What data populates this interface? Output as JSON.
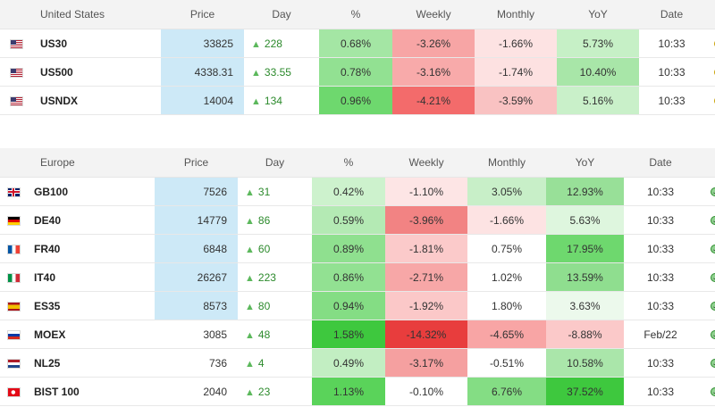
{
  "columns": {
    "price": "Price",
    "day": "Day",
    "pct": "%",
    "weekly": "Weekly",
    "monthly": "Monthly",
    "yoy": "YoY",
    "date": "Date"
  },
  "colors": {
    "price_highlight": "#cde9f7",
    "up_arrow": "#5cb85c",
    "status_open": "#8fd18f",
    "status_pending": "#ffe680"
  },
  "us": {
    "region": "United States",
    "rows": [
      {
        "symbol": "US30",
        "flag": "us-flag-icon",
        "price": "33825",
        "day": "228",
        "pct": "0.68%",
        "weekly": "-3.26%",
        "monthly": "-1.66%",
        "yoy": "5.73%",
        "date": "10:33",
        "status": "clock-icon",
        "bg": {
          "price": "#cde9f7",
          "pct": "#a4e6a4",
          "weekly": "#f7a5a5",
          "monthly": "#fde3e3",
          "yoy": "#c6f0c6"
        }
      },
      {
        "symbol": "US500",
        "flag": "us-flag-icon",
        "price": "4338.31",
        "day": "33.55",
        "pct": "0.78%",
        "weekly": "-3.16%",
        "monthly": "-1.74%",
        "yoy": "10.40%",
        "date": "10:33",
        "status": "clock-icon",
        "bg": {
          "price": "#cde9f7",
          "pct": "#92e192",
          "weekly": "#f8aaaa",
          "monthly": "#fde1e1",
          "yoy": "#a8e6a8"
        }
      },
      {
        "symbol": "USNDX",
        "flag": "us-flag-icon",
        "price": "14004",
        "day": "134",
        "pct": "0.96%",
        "weekly": "-4.21%",
        "monthly": "-3.59%",
        "yoy": "5.16%",
        "date": "10:33",
        "status": "clock-icon",
        "bg": {
          "price": "#cde9f7",
          "pct": "#6ed86e",
          "weekly": "#f36b6b",
          "monthly": "#f9c2c2",
          "yoy": "#c9f0c9"
        }
      }
    ]
  },
  "eu": {
    "region": "Europe",
    "rows": [
      {
        "symbol": "GB100",
        "flag": "uk-flag-icon",
        "price": "7526",
        "day": "31",
        "pct": "0.42%",
        "weekly": "-1.10%",
        "monthly": "3.05%",
        "yoy": "12.93%",
        "date": "10:33",
        "status": "smile-icon",
        "bg": {
          "price": "#cde9f7",
          "pct": "#cdf2cd",
          "weekly": "#fde5e5",
          "monthly": "#c8efc8",
          "yoy": "#98e098"
        }
      },
      {
        "symbol": "DE40",
        "flag": "de-flag-icon",
        "price": "14779",
        "day": "86",
        "pct": "0.59%",
        "weekly": "-3.96%",
        "monthly": "-1.66%",
        "yoy": "5.63%",
        "date": "10:33",
        "status": "smile-icon",
        "bg": {
          "price": "#cde9f7",
          "pct": "#b4eab4",
          "weekly": "#f28383",
          "monthly": "#fde3e3",
          "yoy": "#def6de"
        }
      },
      {
        "symbol": "FR40",
        "flag": "fr-flag-icon",
        "price": "6848",
        "day": "60",
        "pct": "0.89%",
        "weekly": "-1.81%",
        "monthly": "0.75%",
        "yoy": "17.95%",
        "date": "10:33",
        "status": "smile-icon",
        "bg": {
          "price": "#cde9f7",
          "pct": "#8fe08f",
          "weekly": "#fbcaca",
          "monthly": "#ffffff",
          "yoy": "#6ed86e"
        }
      },
      {
        "symbol": "IT40",
        "flag": "it-flag-icon",
        "price": "26267",
        "day": "223",
        "pct": "0.86%",
        "weekly": "-2.71%",
        "monthly": "1.02%",
        "yoy": "13.59%",
        "date": "10:33",
        "status": "smile-icon",
        "bg": {
          "price": "#cde9f7",
          "pct": "#92e192",
          "weekly": "#f7a7a7",
          "monthly": "#ffffff",
          "yoy": "#8fde8f"
        }
      },
      {
        "symbol": "ES35",
        "flag": "es-flag-icon",
        "price": "8573",
        "day": "80",
        "pct": "0.94%",
        "weekly": "-1.92%",
        "monthly": "1.80%",
        "yoy": "3.63%",
        "date": "10:33",
        "status": "smile-icon",
        "bg": {
          "price": "#cde9f7",
          "pct": "#84dd84",
          "weekly": "#fbc8c8",
          "monthly": "#ffffff",
          "yoy": "#ecf9ec"
        }
      },
      {
        "symbol": "MOEX",
        "flag": "ru-flag-icon",
        "price": "3085",
        "day": "48",
        "pct": "1.58%",
        "weekly": "-14.32%",
        "monthly": "-4.65%",
        "yoy": "-8.88%",
        "date": "Feb/22",
        "status": "smile-icon",
        "bg": {
          "price": "#ffffff",
          "pct": "#3ec83e",
          "weekly": "#e83d3d",
          "monthly": "#f8a5a5",
          "yoy": "#fbc9c9"
        }
      },
      {
        "symbol": "NL25",
        "flag": "nl-flag-icon",
        "price": "736",
        "day": "4",
        "pct": "0.49%",
        "weekly": "-3.17%",
        "monthly": "-0.51%",
        "yoy": "10.58%",
        "date": "10:33",
        "status": "smile-icon",
        "bg": {
          "price": "#ffffff",
          "pct": "#c2eec2",
          "weekly": "#f5a0a0",
          "monthly": "#ffffff",
          "yoy": "#aae6aa"
        }
      },
      {
        "symbol": "BIST 100",
        "flag": "tr-flag-icon",
        "price": "2040",
        "day": "23",
        "pct": "1.13%",
        "weekly": "-0.10%",
        "monthly": "6.76%",
        "yoy": "37.52%",
        "date": "10:33",
        "status": "smile-icon",
        "bg": {
          "price": "#ffffff",
          "pct": "#5ad35a",
          "weekly": "#ffffff",
          "monthly": "#84dd84",
          "yoy": "#3ec83e"
        }
      }
    ]
  }
}
